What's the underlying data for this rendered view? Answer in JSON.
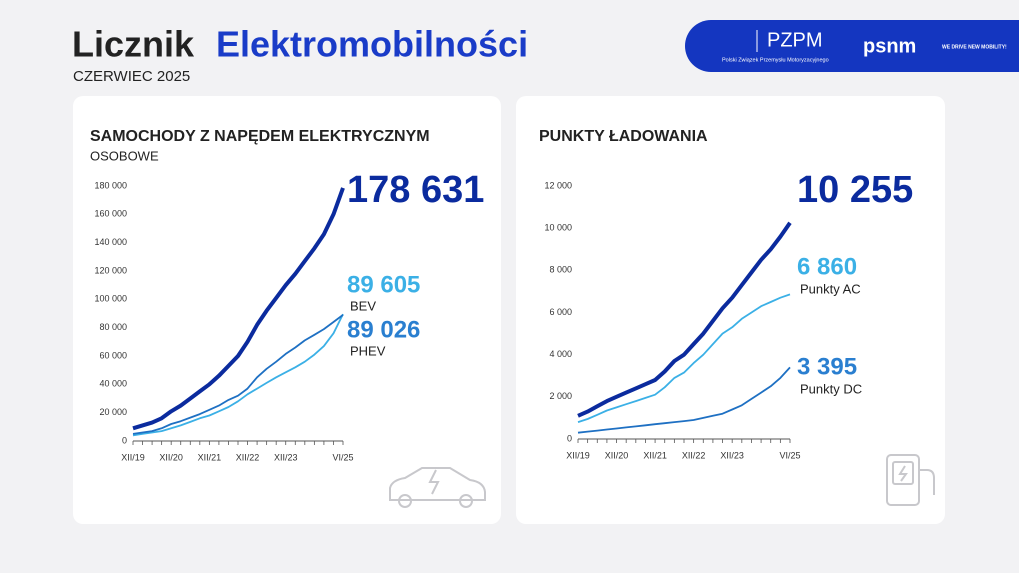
{
  "header": {
    "title_part1": "Licznik",
    "title_part2": "Elektromobilności",
    "subtitle": "CZERWIEC 2025",
    "logo1": "PZPM",
    "logo1_caption": "Polski Związek Przemysłu Motoryzacyjnego",
    "logo2": "psnm",
    "logo2_caption": "WE DRIVE NEW MOBILITY!"
  },
  "chart_data": [
    {
      "type": "line",
      "title": "SAMOCHODY Z NAPĘDEM ELEKTRYCZNYM",
      "subtitle": "OSOBOWE",
      "categories": [
        "XII/19",
        null,
        null,
        null,
        "XII/20",
        null,
        null,
        null,
        "XII/21",
        null,
        null,
        null,
        "XII/22",
        null,
        null,
        null,
        "XII/23",
        null,
        null,
        null,
        null,
        null,
        "VI/25"
      ],
      "ylim": [
        0,
        180000
      ],
      "yticks": [
        0,
        {
          "value": 20000,
          "label": "20 000"
        },
        {
          "value": 40000,
          "label": "40 000"
        },
        {
          "value": 60000,
          "label": "60 000"
        },
        {
          "value": 80000,
          "label": "80 000"
        },
        {
          "value": 100000,
          "label": "100 000"
        },
        {
          "value": 120000,
          "label": "120 000"
        },
        {
          "value": 140000,
          "label": "140 000"
        },
        {
          "value": 160000,
          "label": "160 000"
        },
        {
          "value": 180000,
          "label": "180 000"
        }
      ],
      "grid": false,
      "series": [
        {
          "color": "#0b2b9e",
          "values": [
            9000,
            11000,
            13000,
            16000,
            21000,
            25000,
            30000,
            35000,
            40000,
            46000,
            53000,
            60000,
            70000,
            82000,
            92000,
            101000,
            110000,
            118000,
            127000,
            136000,
            146000,
            160000,
            178631
          ],
          "value_labels": [
            null,
            null,
            null,
            null,
            null,
            null,
            null,
            null,
            null,
            null,
            null,
            null,
            null,
            null,
            null,
            null,
            null,
            null,
            null,
            null,
            null,
            null,
            "178 631"
          ]
        },
        {
          "name": "BEV",
          "color": "#3bb0e6",
          "values": [
            4000,
            5000,
            6000,
            7000,
            9000,
            11000,
            13500,
            16000,
            18000,
            21000,
            24000,
            28000,
            33000,
            37000,
            41000,
            45000,
            48500,
            52000,
            56000,
            61000,
            67000,
            76000,
            89605
          ],
          "value_labels": [
            null,
            null,
            null,
            null,
            null,
            null,
            null,
            null,
            null,
            null,
            null,
            null,
            null,
            null,
            null,
            null,
            null,
            null,
            null,
            null,
            null,
            null,
            "89 605"
          ]
        },
        {
          "name": "PHEV",
          "color": "#1e70c3",
          "values": [
            5000,
            6000,
            7000,
            9000,
            12000,
            14000,
            16500,
            19000,
            22000,
            25000,
            29000,
            32000,
            37000,
            45000,
            51000,
            56000,
            61500,
            66000,
            71000,
            75000,
            79000,
            84000,
            89026
          ],
          "value_labels": [
            null,
            null,
            null,
            null,
            null,
            null,
            null,
            null,
            null,
            null,
            null,
            null,
            null,
            null,
            null,
            null,
            null,
            null,
            null,
            null,
            null,
            null,
            "89 026"
          ]
        }
      ]
    },
    {
      "type": "line",
      "title": "PUNKTY ŁADOWANIA",
      "categories": [
        "XII/19",
        null,
        null,
        null,
        "XII/20",
        null,
        null,
        null,
        "XII/21",
        null,
        null,
        null,
        "XII/22",
        null,
        null,
        null,
        "XII/23",
        null,
        null,
        null,
        null,
        null,
        "VI/25"
      ],
      "ylim": [
        0,
        12000
      ],
      "yticks": [
        0,
        {
          "value": 2000,
          "label": "2 000"
        },
        {
          "value": 4000,
          "label": "4 000"
        },
        {
          "value": 6000,
          "label": "6 000"
        },
        {
          "value": 8000,
          "label": "8 000"
        },
        {
          "value": 10000,
          "label": "10 000"
        },
        {
          "value": 12000,
          "label": "12 000"
        }
      ],
      "grid": false,
      "series": [
        {
          "color": "#0b2b9e",
          "values": [
            1100,
            1300,
            1550,
            1800,
            2000,
            2200,
            2400,
            2600,
            2800,
            3200,
            3700,
            4000,
            4500,
            5000,
            5600,
            6200,
            6700,
            7300,
            7900,
            8500,
            9000,
            9600,
            10255
          ],
          "value_labels": [
            null,
            null,
            null,
            null,
            null,
            null,
            null,
            null,
            null,
            null,
            null,
            null,
            null,
            null,
            null,
            null,
            null,
            null,
            null,
            null,
            null,
            null,
            "10 255"
          ]
        },
        {
          "name": "Punkty AC",
          "color": "#3bb0e6",
          "values": [
            800,
            950,
            1150,
            1350,
            1500,
            1650,
            1800,
            1950,
            2100,
            2450,
            2900,
            3150,
            3600,
            4000,
            4500,
            5000,
            5300,
            5700,
            6000,
            6300,
            6500,
            6700,
            6860
          ],
          "value_labels": [
            null,
            null,
            null,
            null,
            null,
            null,
            null,
            null,
            null,
            null,
            null,
            null,
            null,
            null,
            null,
            null,
            null,
            null,
            null,
            null,
            null,
            null,
            "6 860"
          ]
        },
        {
          "name": "Punkty DC",
          "color": "#1e70c3",
          "values": [
            300,
            350,
            400,
            450,
            500,
            550,
            600,
            650,
            700,
            750,
            800,
            850,
            900,
            1000,
            1100,
            1200,
            1400,
            1600,
            1900,
            2200,
            2500,
            2900,
            3395
          ],
          "value_labels": [
            null,
            null,
            null,
            null,
            null,
            null,
            null,
            null,
            null,
            null,
            null,
            null,
            null,
            null,
            null,
            null,
            null,
            null,
            null,
            null,
            null,
            null,
            "3 395"
          ]
        }
      ]
    }
  ]
}
